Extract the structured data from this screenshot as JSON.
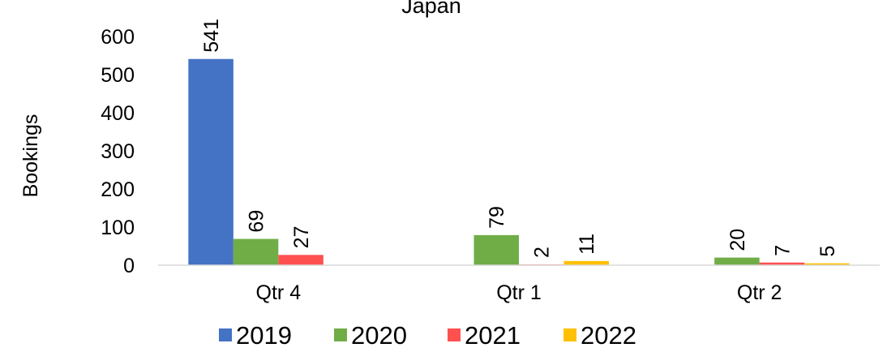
{
  "chart_data": {
    "type": "bar",
    "title": "Japan",
    "xlabel": "",
    "ylabel": "Bookings",
    "ylim": [
      0,
      600
    ],
    "yticks": [
      0,
      100,
      200,
      300,
      400,
      500,
      600
    ],
    "categories": [
      "Qtr 4",
      "Qtr 1",
      "Qtr 2"
    ],
    "series": [
      {
        "name": "2019",
        "color": "#4472C4",
        "values": [
          541,
          null,
          null
        ]
      },
      {
        "name": "2020",
        "color": "#70AD47",
        "values": [
          69,
          79,
          20
        ]
      },
      {
        "name": "2021",
        "color": "#FF5050",
        "values": [
          27,
          2,
          7
        ]
      },
      {
        "name": "2022",
        "color": "#FFC000",
        "values": [
          null,
          11,
          5
        ]
      }
    ],
    "data_labels": true,
    "grid": false,
    "legend": "bottom"
  }
}
